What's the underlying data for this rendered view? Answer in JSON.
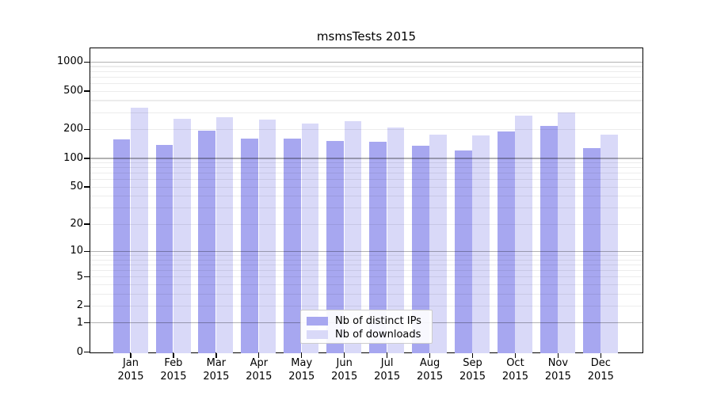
{
  "chart_data": {
    "type": "bar",
    "title": "msmsTests 2015",
    "categories": [
      "Jan 2015",
      "Feb 2015",
      "Mar 2015",
      "Apr 2015",
      "May 2015",
      "Jun 2015",
      "Jul 2015",
      "Aug 2015",
      "Sep 2015",
      "Oct 2015",
      "Nov 2015",
      "Dec 2015"
    ],
    "series": [
      {
        "name": "Nb of distinct IPs",
        "color": "#a7a7f0",
        "values": [
          156,
          136,
          191,
          160,
          158,
          149,
          148,
          133,
          120,
          189,
          215,
          126
        ]
      },
      {
        "name": "Nb of downloads",
        "color": "#d9d9f8",
        "values": [
          330,
          257,
          267,
          253,
          228,
          242,
          208,
          174,
          171,
          277,
          296,
          175
        ]
      }
    ],
    "yscale": "symlog",
    "y_ticks": [
      0,
      1,
      2,
      5,
      10,
      20,
      50,
      100,
      200,
      500,
      1000
    ],
    "ylim": [
      0,
      1300
    ],
    "grid": true,
    "legend_position": "lower center"
  },
  "colors": {
    "bar_distinct_ips": "#a7a7f0",
    "bar_downloads": "#d9d9f8",
    "grid_major": "rgba(0,0,0,0.30)",
    "grid_minor": "rgba(0,0,0,0.075)",
    "axis_spine": "#000000",
    "legend_border": "#cccccc",
    "legend_background": "rgba(255,255,255,0.92)"
  }
}
